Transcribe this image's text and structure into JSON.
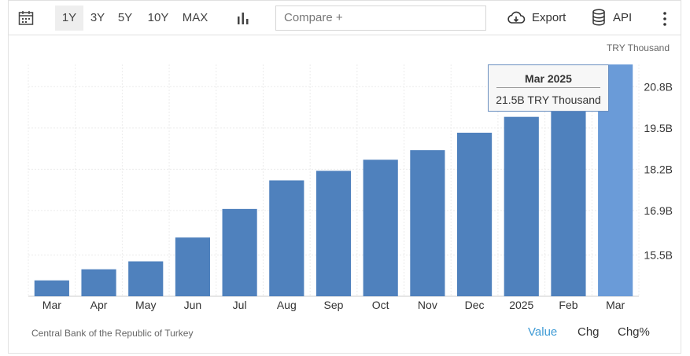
{
  "toolbar": {
    "ranges": [
      "1Y",
      "3Y",
      "5Y",
      "10Y",
      "MAX"
    ],
    "active_range": "1Y",
    "compare_placeholder": "Compare +",
    "export_label": "Export",
    "api_label": "API",
    "icons": [
      "calendar-icon",
      "bar-chart-icon",
      "cloud-download-icon",
      "database-icon",
      "more-vertical-icon"
    ]
  },
  "unit_label": "TRY Thousand",
  "source": "Central Bank of the Republic of Turkey",
  "modes": {
    "value": "Value",
    "chg": "Chg",
    "chgpct": "Chg%",
    "active": "Value"
  },
  "tooltip": {
    "title": "Mar 2025",
    "value": "21.5B TRY Thousand"
  },
  "colors": {
    "bar": "#4f81bd",
    "bar_highlight": "#6a9bd8",
    "active_mode": "#3f9bd5",
    "tooltip_border": "#6a8fc0"
  },
  "chart_data": {
    "type": "bar",
    "categories": [
      "Mar",
      "Apr",
      "May",
      "Jun",
      "Jul",
      "Aug",
      "Sep",
      "Oct",
      "Nov",
      "Dec",
      "2025",
      "Feb",
      "Mar"
    ],
    "values": [
      14.7,
      15.05,
      15.3,
      16.05,
      16.95,
      17.85,
      18.15,
      18.5,
      18.8,
      19.35,
      19.85,
      20.85,
      21.5
    ],
    "y_ticks": [
      15.5,
      16.9,
      18.2,
      19.5,
      20.8
    ],
    "y_tick_labels": [
      "15.5B",
      "16.9B",
      "18.2B",
      "19.5B",
      "20.8B"
    ],
    "ylim": [
      14.2,
      21.5
    ],
    "y_axis_position": "right",
    "grid": true,
    "highlighted_index": 12,
    "title": "",
    "xlabel": "",
    "ylabel": ""
  }
}
